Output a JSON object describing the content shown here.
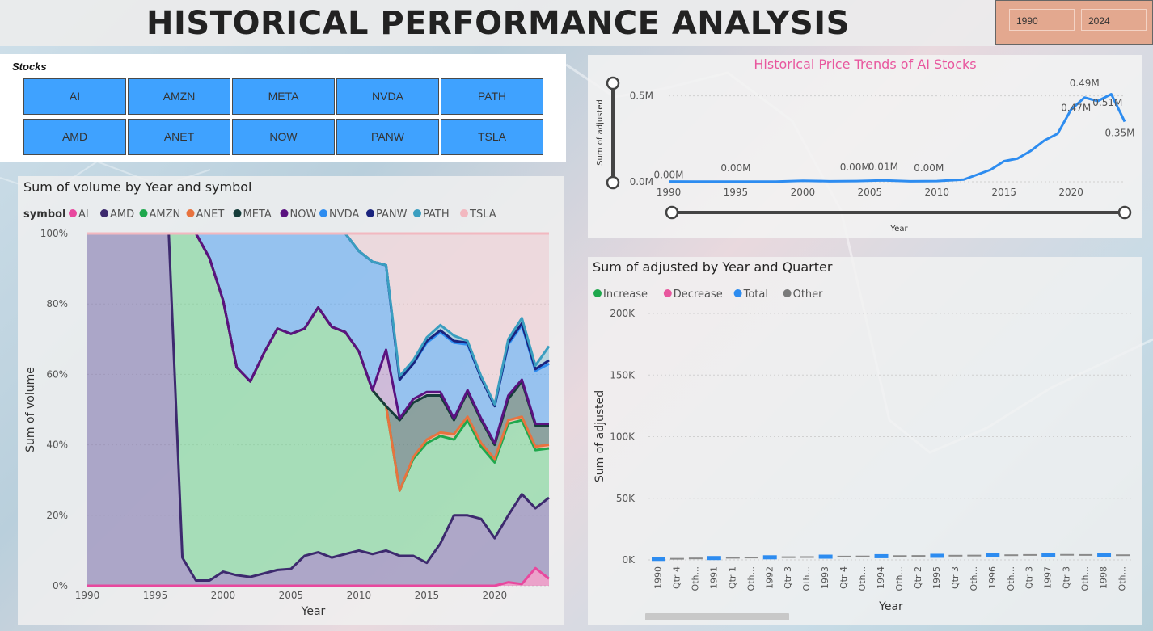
{
  "page_title": "HISTORICAL PERFORMANCE ANALYSIS",
  "date_range": {
    "start": "1990",
    "end": "2024"
  },
  "stocks_slicer": {
    "label": "Stocks",
    "items": [
      "AI",
      "AMZN",
      "META",
      "NVDA",
      "PATH",
      "AMD",
      "ANET",
      "NOW",
      "PANW",
      "TSLA"
    ]
  },
  "colors": {
    "accent": "#3fa2ff",
    "title_pink": "#e8579e",
    "date_bg": "#e3a88f"
  },
  "area_chart": {
    "title": "Sum of volume by Year and symbol",
    "legend_title": "symbol",
    "legend": [
      {
        "name": "AI",
        "color": "#e8489e"
      },
      {
        "name": "AMD",
        "color": "#3d2a6e"
      },
      {
        "name": "AMZN",
        "color": "#1fa84d"
      },
      {
        "name": "ANET",
        "color": "#e8733f"
      },
      {
        "name": "META",
        "color": "#163d3a"
      },
      {
        "name": "NOW",
        "color": "#5a1280"
      },
      {
        "name": "NVDA",
        "color": "#2d8cf0"
      },
      {
        "name": "PANW",
        "color": "#1a237e"
      },
      {
        "name": "PATH",
        "color": "#3a9ec0"
      },
      {
        "name": "TSLA",
        "color": "#f2b8c0"
      }
    ],
    "y_ticks": [
      "100%",
      "80%",
      "60%",
      "40%",
      "20%",
      "0%"
    ],
    "x_ticks": [
      "1990",
      "1995",
      "2000",
      "2005",
      "2010",
      "2015",
      "2020"
    ],
    "xlabel": "Year",
    "ylabel": "Sum of volume"
  },
  "line_chart": {
    "title": "Historical Price Trends of AI Stocks",
    "ylabel": "Sum of adjusted",
    "xlabel": "Year",
    "y_ticks": [
      "0.5M",
      "0.0M"
    ],
    "x_ticks": [
      "1990",
      "1995",
      "2000",
      "2005",
      "2010",
      "2015",
      "2020"
    ],
    "data_labels": [
      "0.00M",
      "0.00M",
      "0.00M",
      "0.01M",
      "0.00M",
      "0.49M",
      "0.47M",
      "0.51M",
      "0.35M"
    ]
  },
  "waterfall": {
    "title": "Sum of adjusted by Year and Quarter",
    "legend": [
      {
        "name": "Increase",
        "color": "#1fa84d"
      },
      {
        "name": "Decrease",
        "color": "#e8579e"
      },
      {
        "name": "Total",
        "color": "#2d8cf0"
      },
      {
        "name": "Other",
        "color": "#7a7a7a"
      }
    ],
    "y_ticks": [
      "200K",
      "150K",
      "100K",
      "50K",
      "0K"
    ],
    "ylabel": "Sum of adjusted",
    "xlabel": "Year",
    "categories": [
      "1990",
      "Qtr 4",
      "Oth...",
      "1991",
      "Qtr 1",
      "Oth...",
      "1992",
      "Qtr 3",
      "Oth...",
      "1993",
      "Qtr 4",
      "Oth...",
      "1994",
      "Oth...",
      "Qtr 2",
      "1995",
      "Qtr 3",
      "Oth...",
      "1996",
      "Oth...",
      "Qtr 3",
      "1997",
      "Qtr 3",
      "Oth...",
      "1998",
      "Oth..."
    ]
  },
  "chart_data": [
    {
      "type": "area",
      "title": "Sum of volume by Year and symbol",
      "xlabel": "Year",
      "ylabel": "Sum of volume",
      "ylim": [
        0,
        100
      ],
      "x": [
        1990,
        1991,
        1992,
        1993,
        1994,
        1995,
        1996,
        1997,
        1998,
        1999,
        2000,
        2001,
        2002,
        2003,
        2004,
        2005,
        2006,
        2007,
        2008,
        2009,
        2010,
        2011,
        2012,
        2013,
        2014,
        2015,
        2016,
        2017,
        2018,
        2019,
        2020,
        2021,
        2022,
        2023,
        2024
      ],
      "series_boundaries_percent": [
        {
          "name": "AI",
          "values": [
            0,
            0,
            0,
            0,
            0,
            0,
            0,
            0,
            0,
            0,
            0,
            0,
            0,
            0,
            0,
            0,
            0,
            0,
            0,
            0,
            0,
            0,
            0,
            0,
            0,
            0,
            0,
            0,
            0,
            0,
            0,
            1,
            0.5,
            5,
            2
          ]
        },
        {
          "name": "AMD",
          "values": [
            100,
            100,
            100,
            100,
            100,
            100,
            100,
            8,
            1.5,
            1.5,
            4,
            3,
            2.5,
            3.5,
            4.5,
            4.8,
            8.5,
            9.5,
            8,
            9,
            10,
            9,
            10,
            8.5,
            8.5,
            6.5,
            12,
            20,
            20,
            19,
            13.5,
            20,
            26,
            22,
            25
          ]
        },
        {
          "name": "AMZN",
          "values": [
            100,
            100,
            100,
            100,
            100,
            100,
            100,
            100,
            100,
            93,
            81,
            62,
            58,
            66,
            73,
            71.5,
            73,
            79,
            73.5,
            72,
            66.5,
            55.5,
            51,
            27,
            36,
            40.5,
            42.5,
            41.5,
            47,
            39.5,
            35,
            46,
            47,
            38.5,
            39
          ]
        },
        {
          "name": "ANET",
          "values": [
            100,
            100,
            100,
            100,
            100,
            100,
            100,
            100,
            100,
            93,
            81,
            62,
            58,
            66,
            73,
            71.5,
            73,
            79,
            73.5,
            72,
            66.5,
            55.5,
            51,
            27,
            36.5,
            41.5,
            43.5,
            43,
            48,
            40.5,
            36,
            47,
            48,
            39.5,
            40
          ]
        },
        {
          "name": "META",
          "values": [
            100,
            100,
            100,
            100,
            100,
            100,
            100,
            100,
            100,
            93,
            81,
            62,
            58,
            66,
            73,
            71.5,
            73,
            79,
            73.5,
            72,
            66.5,
            55.5,
            51,
            47,
            52,
            54,
            54,
            47,
            55,
            47,
            40,
            53,
            58,
            45.5,
            45.5
          ]
        },
        {
          "name": "NOW",
          "values": [
            100,
            100,
            100,
            100,
            100,
            100,
            100,
            100,
            100,
            93,
            81,
            62,
            58,
            66,
            73,
            71.5,
            73,
            79,
            73.5,
            72,
            66.5,
            55.5,
            67,
            47.5,
            53,
            55,
            55,
            47.5,
            55.5,
            47.5,
            40.5,
            54,
            58.5,
            46,
            46
          ]
        },
        {
          "name": "NVDA",
          "values": [
            100,
            100,
            100,
            100,
            100,
            100,
            100,
            100,
            100,
            100,
            100,
            100,
            100,
            100,
            100,
            100,
            100,
            100,
            100,
            100,
            95,
            92,
            91,
            58.5,
            63,
            69,
            72,
            69,
            68.5,
            59,
            51,
            68.5,
            74,
            61,
            63
          ]
        },
        {
          "name": "PANW",
          "values": [
            100,
            100,
            100,
            100,
            100,
            100,
            100,
            100,
            100,
            100,
            100,
            100,
            100,
            100,
            100,
            100,
            100,
            100,
            100,
            100,
            95,
            92,
            91,
            58.5,
            63,
            69.5,
            72.5,
            69.5,
            69,
            59,
            51,
            69,
            74.5,
            61.5,
            64
          ]
        },
        {
          "name": "PATH",
          "values": [
            100,
            100,
            100,
            100,
            100,
            100,
            100,
            100,
            100,
            100,
            100,
            100,
            100,
            100,
            100,
            100,
            100,
            100,
            100,
            100,
            95,
            92,
            91,
            59.5,
            64,
            70.5,
            74,
            71,
            69.5,
            59.5,
            51.5,
            70,
            76,
            62.5,
            68
          ]
        },
        {
          "name": "TSLA",
          "values": [
            100,
            100,
            100,
            100,
            100,
            100,
            100,
            100,
            100,
            100,
            100,
            100,
            100,
            100,
            100,
            100,
            100,
            100,
            100,
            100,
            100,
            100,
            100,
            100,
            100,
            100,
            100,
            100,
            100,
            100,
            100,
            100,
            100,
            100,
            100
          ]
        }
      ]
    },
    {
      "type": "line",
      "title": "Historical Price Trends of AI Stocks",
      "xlabel": "Year",
      "ylabel": "Sum of adjusted",
      "x": [
        1990,
        1992,
        1994,
        1996,
        1998,
        2000,
        2002,
        2004,
        2006,
        2008,
        2010,
        2012,
        2014,
        2015,
        2016,
        2017,
        2018,
        2019,
        2020,
        2021,
        2022,
        2023,
        2024
      ],
      "values": [
        0.002,
        0.001,
        0.001,
        0.001,
        0.001,
        0.006,
        0.003,
        0.004,
        0.008,
        0.003,
        0.004,
        0.013,
        0.07,
        0.12,
        0.135,
        0.18,
        0.24,
        0.28,
        0.42,
        0.49,
        0.47,
        0.51,
        0.35
      ],
      "unit": "M"
    },
    {
      "type": "bar",
      "title": "Sum of adjusted by Year and Quarter",
      "xlabel": "Year",
      "ylabel": "Sum of adjusted",
      "ylim": [
        0,
        200000
      ],
      "categories": [
        "1990",
        "Qtr 4",
        "Oth...",
        "1991",
        "Qtr 1",
        "Oth...",
        "1992",
        "Qtr 3",
        "Oth...",
        "1993",
        "Qtr 4",
        "Oth...",
        "1994",
        "Oth...",
        "Qtr 2",
        "1995",
        "Qtr 3",
        "Oth...",
        "1996",
        "Oth...",
        "Qtr 3",
        "1997",
        "Qtr 3",
        "Oth...",
        "1998",
        "Oth..."
      ],
      "values": [
        800,
        900,
        1200,
        1500,
        1700,
        1900,
        2100,
        2200,
        2300,
        2600,
        2700,
        2800,
        3000,
        3100,
        3200,
        3300,
        3400,
        3500,
        3600,
        3800,
        4000,
        4200,
        4100,
        4000,
        3900,
        3800
      ]
    }
  ]
}
